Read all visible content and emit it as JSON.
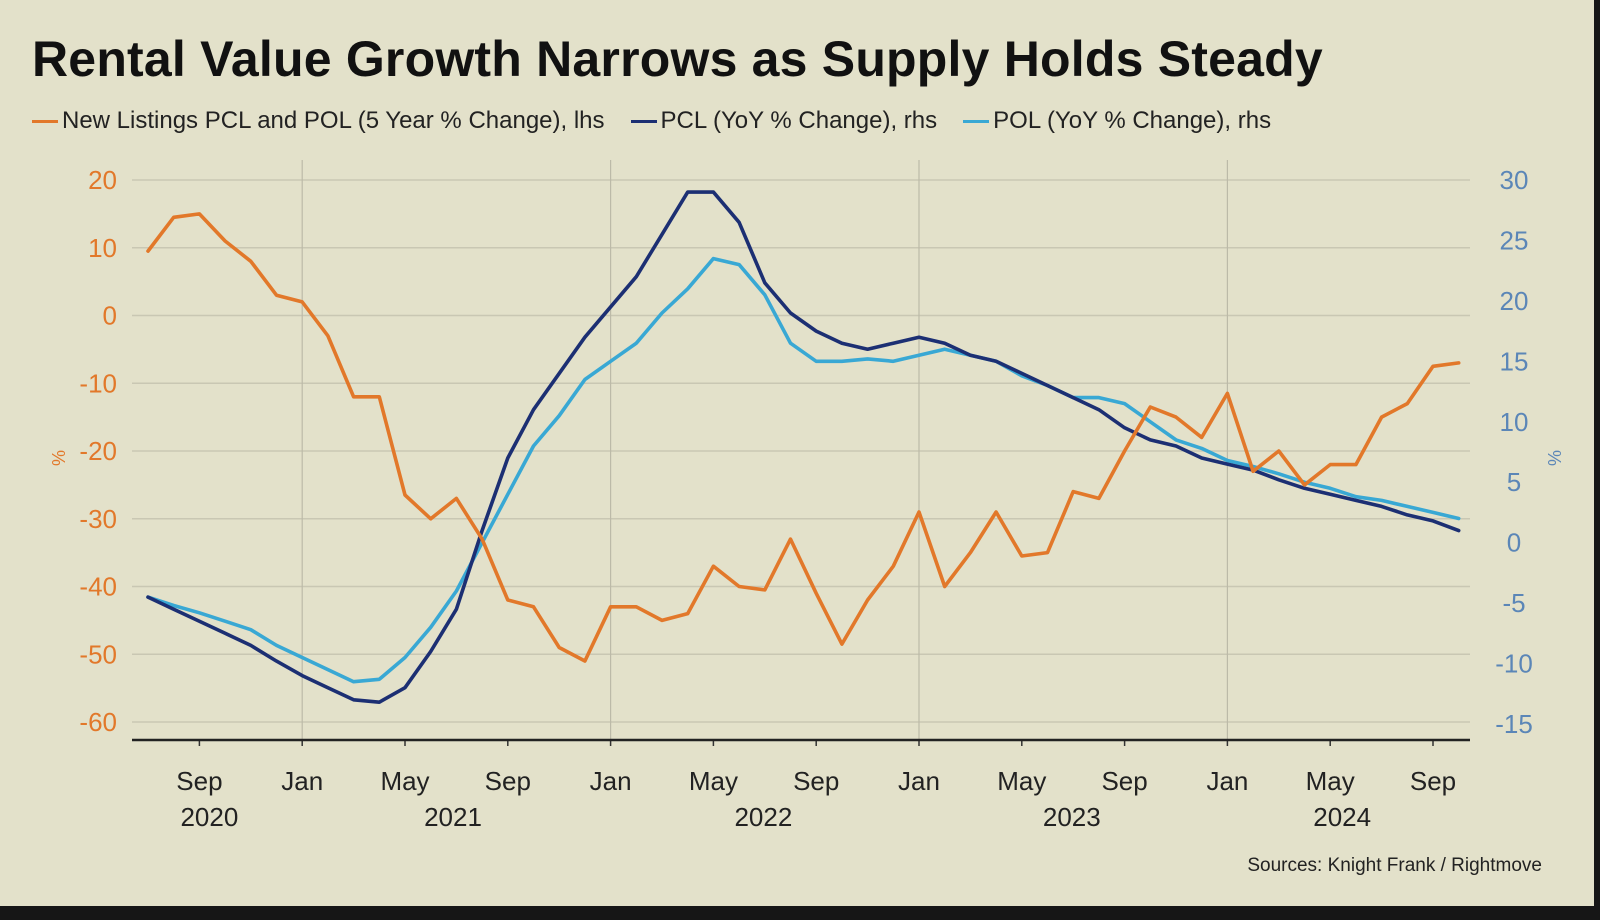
{
  "chart_data": {
    "type": "line",
    "title": "Rental Value Growth Narrows as Supply Holds Steady",
    "source": "Sources: Knight Frank / Rightmove",
    "left_axis": {
      "label": "%",
      "ylim": [
        -60,
        20
      ],
      "ticks": [
        20,
        10,
        0,
        -10,
        -20,
        -30,
        -40,
        -50,
        -60
      ]
    },
    "right_axis": {
      "label": "%",
      "ylim": [
        -15,
        30
      ],
      "ticks": [
        30,
        25,
        20,
        15,
        10,
        5,
        0,
        -5,
        -10,
        -15
      ]
    },
    "x_ticks": [
      {
        "month": "Sep",
        "year": "2020",
        "index": 2
      },
      {
        "month": "Jan",
        "year": "",
        "index": 6
      },
      {
        "month": "May",
        "year": "2021",
        "index": 10
      },
      {
        "month": "Sep",
        "year": "",
        "index": 14
      },
      {
        "month": "Jan",
        "year": "",
        "index": 18
      },
      {
        "month": "May",
        "year": "2022",
        "index": 22
      },
      {
        "month": "Sep",
        "year": "",
        "index": 26
      },
      {
        "month": "Jan",
        "year": "",
        "index": 30
      },
      {
        "month": "May",
        "year": "2023",
        "index": 34
      },
      {
        "month": "Sep",
        "year": "",
        "index": 38
      },
      {
        "month": "Jan",
        "year": "",
        "index": 42
      },
      {
        "month": "May",
        "year": "2024",
        "index": 46
      },
      {
        "month": "Sep",
        "year": "",
        "index": 50
      }
    ],
    "grid": true,
    "series": [
      {
        "name": "New Listings PCL and POL (5 Year % Change), lhs",
        "axis": "left",
        "color": "#e2782a",
        "values": [
          9.5,
          14.5,
          15,
          11,
          8,
          3,
          2,
          -3,
          -12,
          -12,
          -26.5,
          -30,
          -27,
          -33,
          -42,
          -43,
          -49,
          -51,
          -43,
          -43,
          -45,
          -44,
          -37,
          -40,
          -40.5,
          -33,
          -41,
          -48.5,
          -42,
          -37,
          -29,
          -40,
          -35,
          -29,
          -35.5,
          -35,
          -26,
          -27,
          -20,
          -13.5,
          -15,
          -18,
          -11.5,
          -23,
          -20,
          -25,
          -22,
          -22,
          -15,
          -13,
          -7.5,
          -7
        ]
      },
      {
        "name": "PCL (YoY % Change), rhs",
        "axis": "right",
        "color": "#1c2f73",
        "values": [
          -4.5,
          -5.5,
          -6.5,
          -7.5,
          -8.5,
          -9.8,
          -11,
          -12,
          -13,
          -13.2,
          -12,
          -9,
          -5.5,
          1,
          7,
          11,
          14,
          17,
          19.5,
          22,
          25.5,
          29,
          29,
          26.5,
          21.5,
          19,
          17.5,
          16.5,
          16,
          16.5,
          17,
          16.5,
          15.5,
          15,
          14,
          13,
          12,
          11,
          9.5,
          8.5,
          8,
          7,
          6.5,
          6,
          5.2,
          4.5,
          4,
          3.5,
          3,
          2.3,
          1.8,
          1
        ]
      },
      {
        "name": "POL (YoY % Change), rhs",
        "axis": "right",
        "color": "#39a8d4",
        "values": [
          -4.5,
          -5.2,
          -5.8,
          -6.5,
          -7.2,
          -8.5,
          -9.5,
          -10.5,
          -11.5,
          -11.3,
          -9.5,
          -7,
          -4,
          0,
          4,
          8,
          10.5,
          13.5,
          15,
          16.5,
          19,
          21,
          23.5,
          23,
          20.5,
          16.5,
          15,
          15,
          15.2,
          15,
          15.5,
          16,
          15.5,
          15,
          13.8,
          13,
          12,
          12,
          11.5,
          10,
          8.5,
          7.8,
          6.8,
          6.3,
          5.7,
          5,
          4.5,
          3.8,
          3.5,
          3,
          2.5,
          2
        ]
      }
    ]
  }
}
